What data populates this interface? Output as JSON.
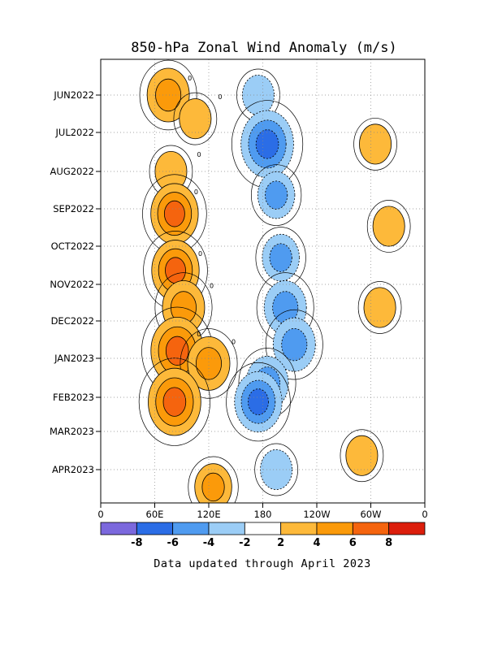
{
  "chart_data": {
    "type": "heatmap",
    "title": "850-hPa Zonal Wind Anomaly (m/s)",
    "xlabel": "",
    "ylabel": "",
    "x_ticks": [
      "0",
      "60E",
      "120E",
      "180",
      "120W",
      "60W",
      "0"
    ],
    "x_range_deg_east": [
      0,
      360
    ],
    "y_ticks": [
      "JUN2022",
      "JUL2022",
      "AUG2022",
      "SEP2022",
      "OCT2022",
      "NOV2022",
      "DEC2022",
      "JAN2023",
      "FEB2023",
      "MAR2023",
      "APR2023"
    ],
    "y_direction": "time increases downward",
    "grid": true,
    "contour_label": "0",
    "colorbar": {
      "ticks": [
        "-8",
        "-6",
        "-4",
        "-2",
        "2",
        "4",
        "6",
        "8"
      ],
      "bins": [
        {
          "range": "< -8",
          "color": "#7b68dd"
        },
        {
          "range": "-8 to -6",
          "color": "#2b6de6"
        },
        {
          "range": "-6 to -4",
          "color": "#4f9bf0"
        },
        {
          "range": "-4 to -2",
          "color": "#9bcdf6"
        },
        {
          "range": "-2 to 2",
          "color": "#ffffff"
        },
        {
          "range": "2 to 4",
          "color": "#fdb93a"
        },
        {
          "range": "4 to 6",
          "color": "#fb9a0a"
        },
        {
          "range": "6 to 8",
          "color": "#f5640e"
        },
        {
          "range": "> 8",
          "color": "#dc1e0c"
        }
      ]
    },
    "anomaly_features": [
      {
        "lon": 75,
        "time": "2022-06-01",
        "value": 5
      },
      {
        "lon": 105,
        "time": "2022-06-20",
        "value": 3
      },
      {
        "lon": 78,
        "time": "2022-08-01",
        "value": 3
      },
      {
        "lon": 82,
        "time": "2022-09-05",
        "value": 6
      },
      {
        "lon": 83,
        "time": "2022-10-20",
        "value": 6
      },
      {
        "lon": 92,
        "time": "2022-11-20",
        "value": 5
      },
      {
        "lon": 85,
        "time": "2022-12-25",
        "value": 7
      },
      {
        "lon": 120,
        "time": "2023-01-05",
        "value": 5
      },
      {
        "lon": 82,
        "time": "2023-02-05",
        "value": 7
      },
      {
        "lon": 125,
        "time": "2023-04-15",
        "value": 4
      },
      {
        "lon": 320,
        "time": "2022-09-15",
        "value": 3
      },
      {
        "lon": 310,
        "time": "2022-11-20",
        "value": 3
      },
      {
        "lon": 290,
        "time": "2023-03-20",
        "value": 3
      },
      {
        "lon": 305,
        "time": "2022-07-10",
        "value": 3
      },
      {
        "lon": 175,
        "time": "2022-06-01",
        "value": -3
      },
      {
        "lon": 185,
        "time": "2022-07-10",
        "value": -7
      },
      {
        "lon": 195,
        "time": "2022-08-20",
        "value": -4
      },
      {
        "lon": 200,
        "time": "2022-10-10",
        "value": -4
      },
      {
        "lon": 205,
        "time": "2022-11-20",
        "value": -5
      },
      {
        "lon": 215,
        "time": "2022-12-20",
        "value": -5
      },
      {
        "lon": 185,
        "time": "2023-01-20",
        "value": -5
      },
      {
        "lon": 175,
        "time": "2023-02-05",
        "value": -6
      },
      {
        "lon": 195,
        "time": "2023-04-01",
        "value": -3
      }
    ]
  },
  "footer": {
    "text": "Data updated through April 2023"
  }
}
